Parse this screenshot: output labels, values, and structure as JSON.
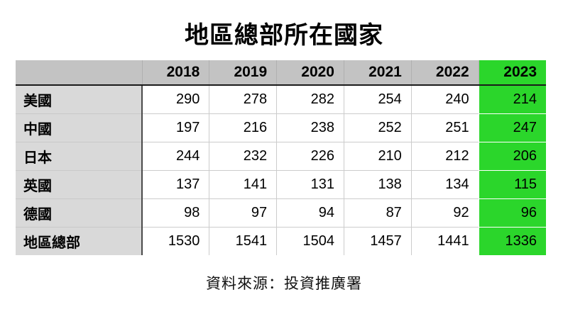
{
  "title": "地區總部所在國家",
  "source_note": "資料來源：投資推廣署",
  "colors": {
    "header_bg": "#c3c3c3",
    "label_bg": "#d9d9d9",
    "highlight_bg": "#2bd62b",
    "header_border": "#1a1a1a",
    "label_border": "#4a4a4a",
    "cell_border": "#cccccc"
  },
  "chart_data": {
    "type": "table",
    "title": "地區總部所在國家",
    "columns": [
      "2018",
      "2019",
      "2020",
      "2021",
      "2022",
      "2023"
    ],
    "highlighted_column": "2023",
    "rows": [
      {
        "label": "美國",
        "values": [
          290,
          278,
          282,
          254,
          240,
          214
        ]
      },
      {
        "label": "中國",
        "values": [
          197,
          216,
          238,
          252,
          251,
          247
        ]
      },
      {
        "label": "日本",
        "values": [
          244,
          232,
          226,
          210,
          212,
          206
        ]
      },
      {
        "label": "英國",
        "values": [
          137,
          141,
          131,
          138,
          134,
          115
        ]
      },
      {
        "label": "德國",
        "values": [
          98,
          97,
          94,
          87,
          92,
          96
        ]
      },
      {
        "label": "地區總部",
        "values": [
          1530,
          1541,
          1504,
          1457,
          1441,
          1336
        ]
      }
    ],
    "source": "資料來源：投資推廣署"
  }
}
